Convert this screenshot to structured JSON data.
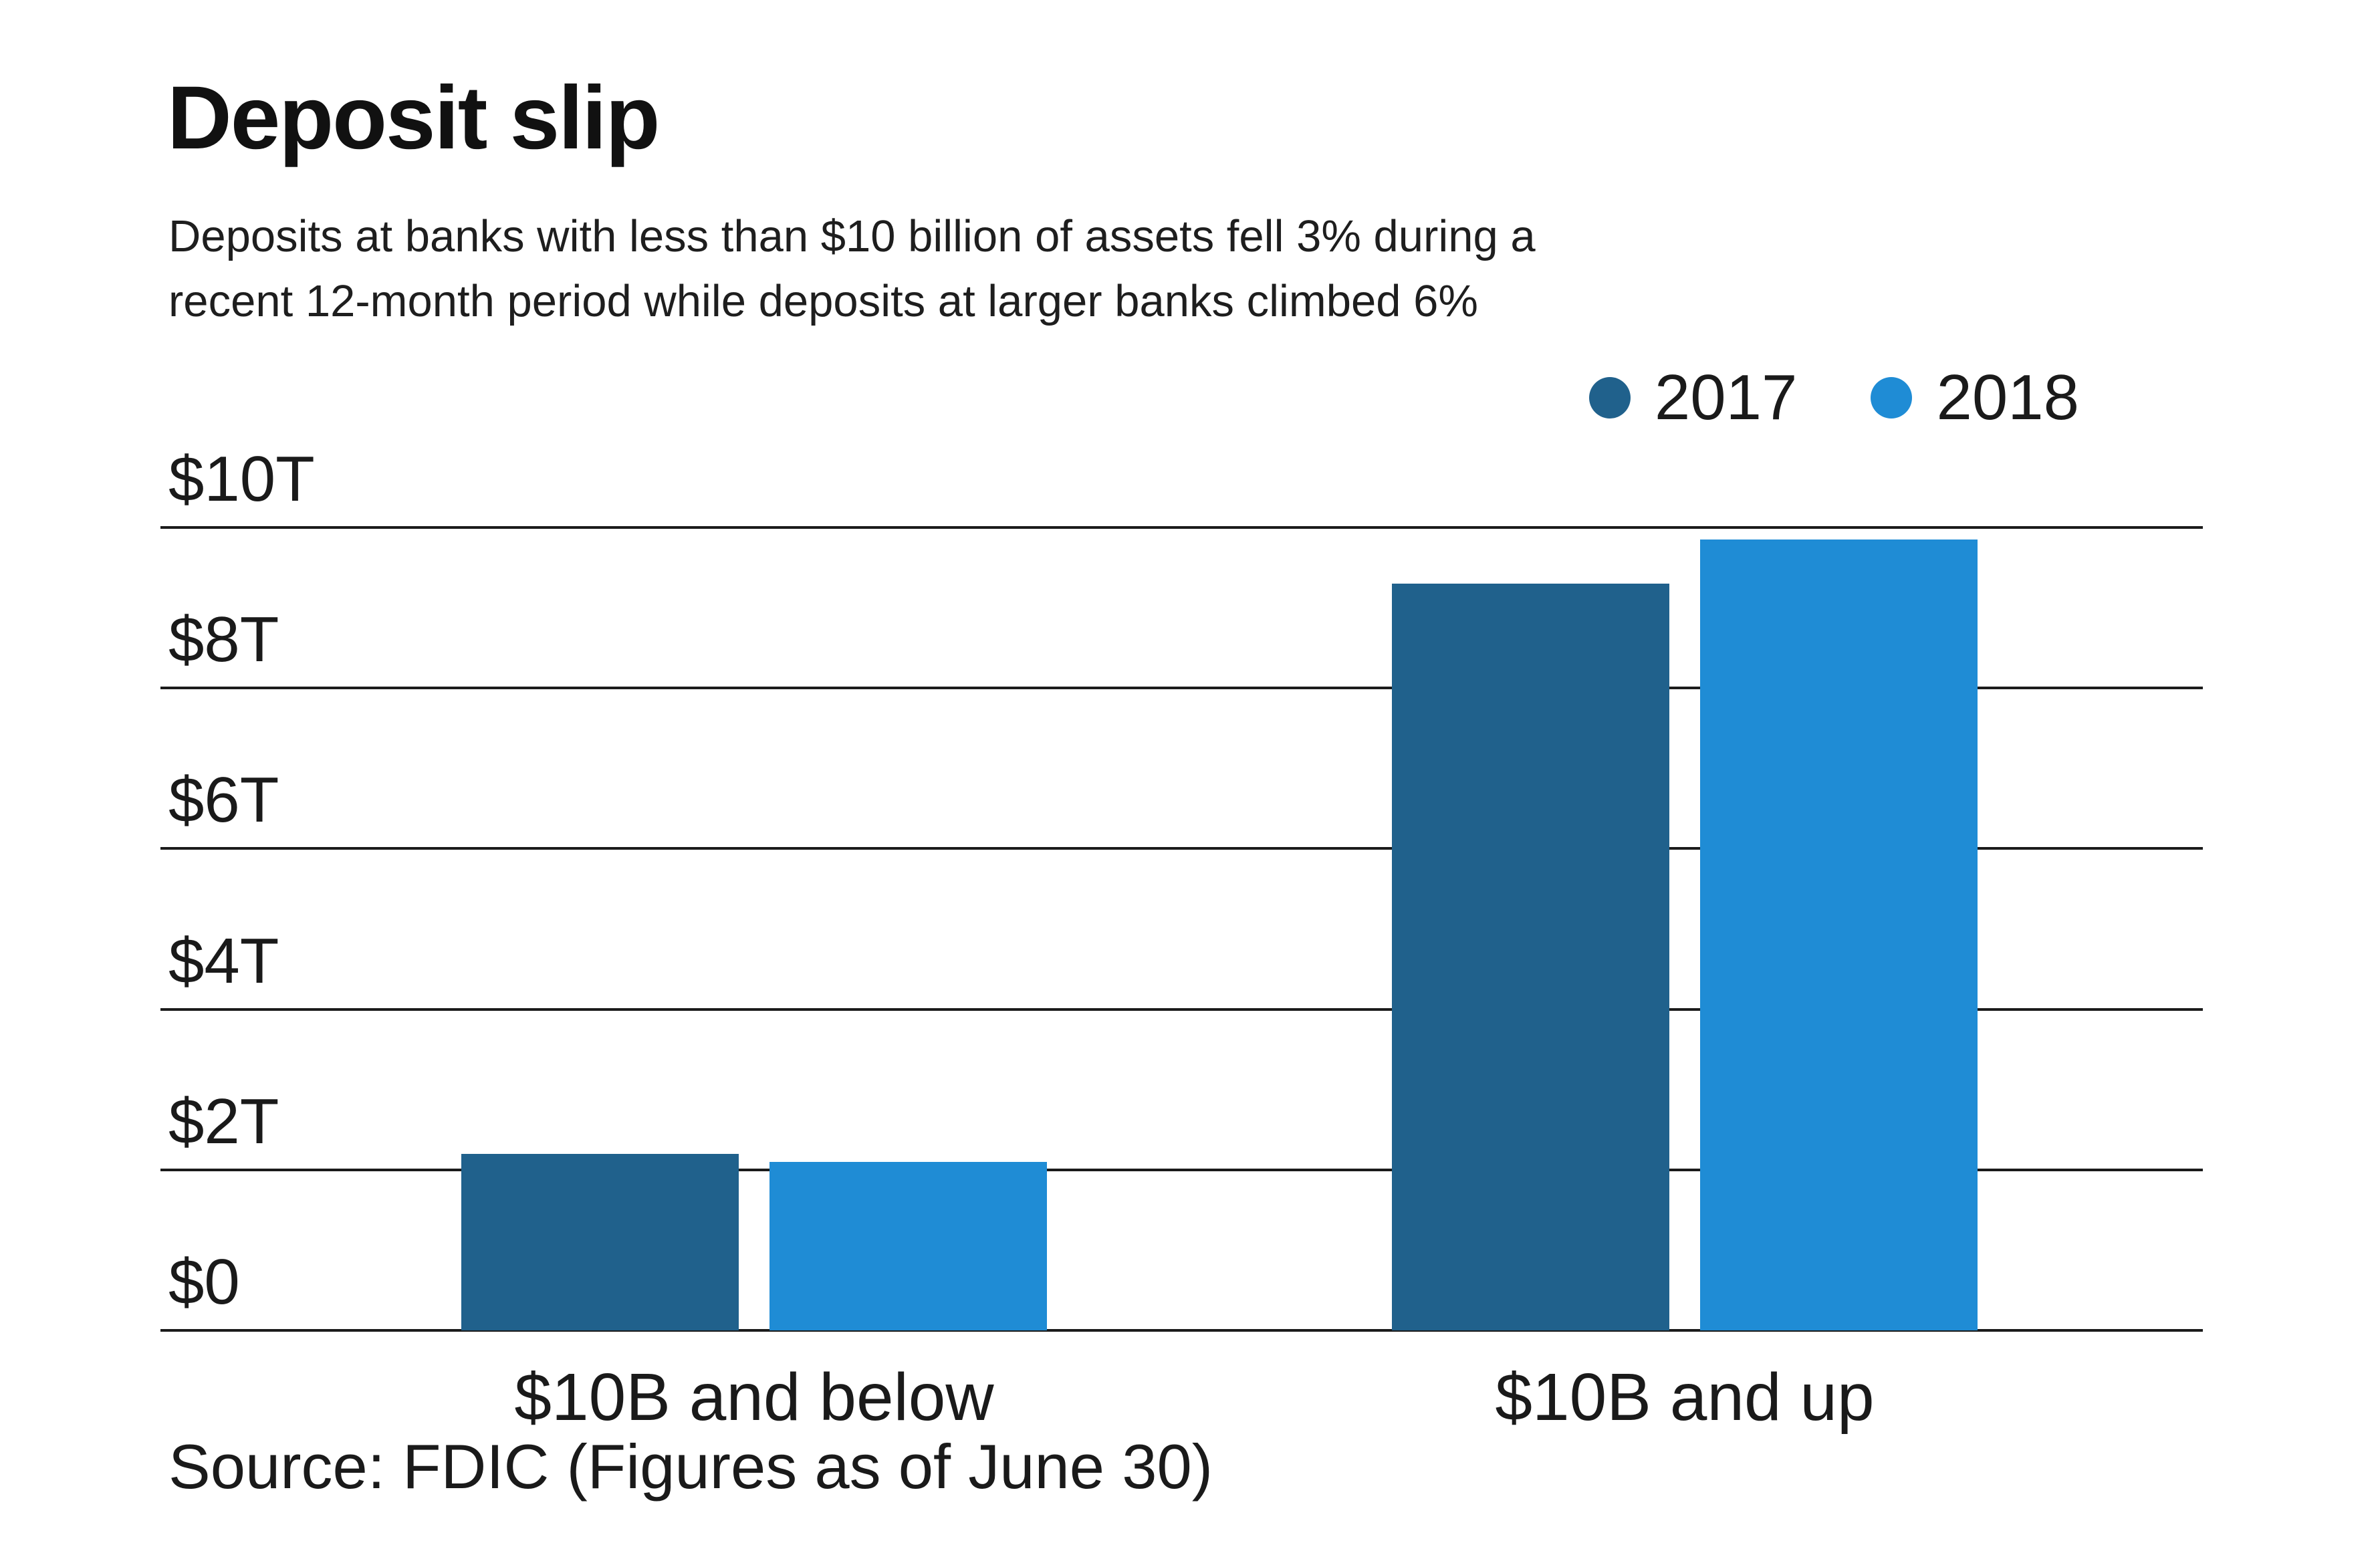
{
  "title": "Deposit slip",
  "subtitle_lines": [
    "Deposits at banks with less than $10 billion of assets fell 3% during a",
    "recent 12-month period while deposits at larger banks climbed 6%"
  ],
  "source": "Source: FDIC (Figures as of June 30)",
  "colors": {
    "series_2017": "#20618c",
    "series_2018": "#1f8cd5",
    "gridline": "#1b1b1b",
    "text": "#1a1a1a"
  },
  "chart_data": {
    "type": "bar",
    "title": "Deposit slip",
    "subtitle": "Deposits at banks with less than $10 billion of assets fell 3% during a recent 12-month period while deposits at larger banks climbed 6%",
    "categories": [
      "$10B and below",
      "$10B and up"
    ],
    "series": [
      {
        "name": "2017",
        "color": "#20618c",
        "values": [
          2.2,
          9.3
        ]
      },
      {
        "name": "2018",
        "color": "#1f8cd5",
        "values": [
          2.1,
          9.85
        ]
      }
    ],
    "value_unit": "trillions of USD",
    "xlabel": "",
    "ylabel": "",
    "ylim": [
      0,
      10
    ],
    "yticks": [
      {
        "label": "$0",
        "value": 0
      },
      {
        "label": "$2T",
        "value": 2
      },
      {
        "label": "$4T",
        "value": 4
      },
      {
        "label": "$6T",
        "value": 6
      },
      {
        "label": "$8T",
        "value": 8
      },
      {
        "label": "$10T",
        "value": 10
      }
    ],
    "grid": true,
    "legend_position": "top-right",
    "source": "Source: FDIC (Figures as of June 30)"
  }
}
